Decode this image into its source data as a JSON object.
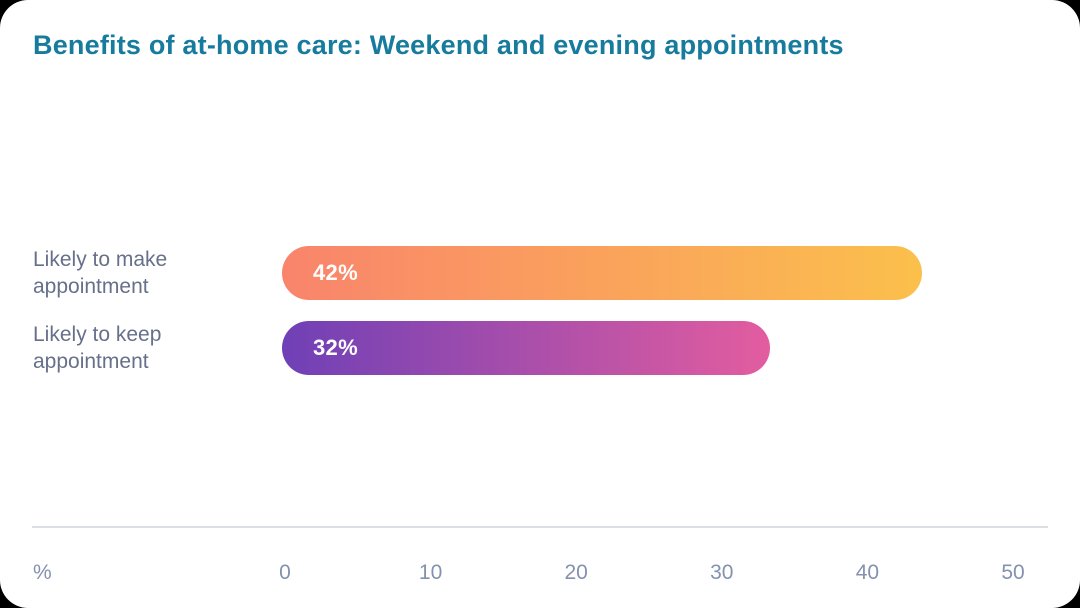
{
  "title": "Benefits of at-home care: Weekend and evening appointments",
  "colors": {
    "card_background": "#FFFFFF",
    "title_text": "#177B9D",
    "category_label_text": "#66708A",
    "tick_label_text": "#8492AE",
    "divider": "#DCDFE3",
    "bar_value_text": "#FFFFFF",
    "bar1_gradient_start": "#F9846C",
    "bar1_gradient_end": "#FBC04C",
    "bar2_gradient_start": "#6F40B6",
    "bar2_gradient_end": "#E35D9F"
  },
  "chart_data": {
    "type": "bar",
    "orientation": "horizontal",
    "title": "Benefits of at-home care: Weekend and evening appointments",
    "categories": [
      "Likely to make appointment",
      "Likely to keep appointment"
    ],
    "values": [
      42,
      32
    ],
    "value_labels": [
      "42%",
      "32%"
    ],
    "xlim": [
      0,
      50
    ],
    "xticks": [
      0,
      10,
      20,
      30,
      40,
      50
    ],
    "xtick_labels": [
      "0",
      "10",
      "20",
      "30",
      "40",
      "50"
    ],
    "x_unit_label": "%",
    "bar_gradients": [
      [
        "#F9846C",
        "#FBC04C"
      ],
      [
        "#6F40B6",
        "#E35D9F"
      ]
    ],
    "grid": false,
    "legend": false
  }
}
